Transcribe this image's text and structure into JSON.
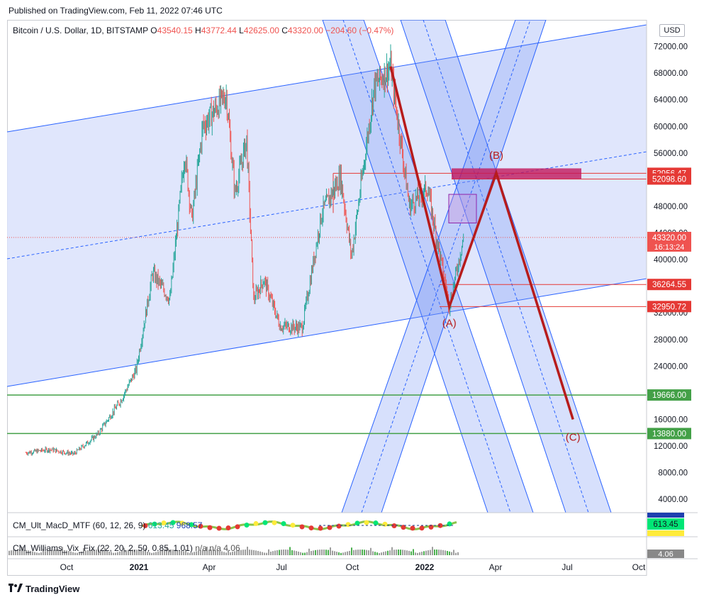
{
  "header": {
    "published": "Published on TradingView.com, Feb 11, 2022 07:46 UTC"
  },
  "legend": {
    "symbol": "Bitcoin / U.S. Dollar, 1D, BITSTAMP",
    "open_key": "O",
    "open": "43540.15",
    "high_key": "H",
    "high": "43772.44",
    "low_key": "L",
    "low": "42625.00",
    "close_key": "C",
    "close": "43320.00",
    "change": "−204.60 (−0.47%)"
  },
  "currency_button": "USD",
  "indicators": {
    "macd": {
      "name": "CM_Ult_MacD_MTF (60, 12, 26, 9)",
      "v1": "613.45",
      "v2": "968.57",
      "axis_top": "1000",
      "axis_mid": "613.45",
      "axis_low": "355.12"
    },
    "vix": {
      "name": "CM_Williams_Vix_Fix (22, 20, 2, 50, 0.85, 1.01)",
      "v1": "n/a",
      "v2": "n/a",
      "v3": "4.06",
      "axis": "4.06"
    }
  },
  "footer": {
    "brand": "TradingView",
    "logo_icon": "tradingview-logo-icon"
  },
  "colors": {
    "channel_fill": "#dbe2fb",
    "channel_line": "#2962ff",
    "wave_line": "#b71c1c",
    "support_green": "#43a047",
    "resistance_box": "#c2185b",
    "candle_up": "#26a69a",
    "candle_down": "#ef5350",
    "price_tag_red": "#e53935"
  },
  "chart_data": {
    "type": "candlestick",
    "title": "Bitcoin / U.S. Dollar, 1D, BITSTAMP",
    "x_axis": {
      "ticks": [
        "Oct",
        "2021",
        "Apr",
        "Jul",
        "Oct",
        "2022",
        "Apr",
        "Jul",
        "Oct"
      ]
    },
    "y_axis": {
      "min": 2000,
      "max": 76000,
      "currency": "USD",
      "ticks": [
        4000,
        8000,
        12000,
        16000,
        20000,
        24000,
        28000,
        32000,
        36000,
        40000,
        44000,
        48000,
        52000,
        56000,
        60000,
        64000,
        68000,
        72000,
        76000
      ]
    },
    "price_path": [
      {
        "date": "2020-08-01",
        "price": 11000
      },
      {
        "date": "2020-09-01",
        "price": 11500
      },
      {
        "date": "2020-10-01",
        "price": 10800
      },
      {
        "date": "2020-11-01",
        "price": 13800
      },
      {
        "date": "2020-12-01",
        "price": 19000
      },
      {
        "date": "2020-12-20",
        "price": 23500
      },
      {
        "date": "2021-01-10",
        "price": 38000
      },
      {
        "date": "2021-02-01",
        "price": 34000
      },
      {
        "date": "2021-02-20",
        "price": 56000
      },
      {
        "date": "2021-03-01",
        "price": 46000
      },
      {
        "date": "2021-03-15",
        "price": 60000
      },
      {
        "date": "2021-04-14",
        "price": 64800
      },
      {
        "date": "2021-04-25",
        "price": 50000
      },
      {
        "date": "2021-05-10",
        "price": 58000
      },
      {
        "date": "2021-05-19",
        "price": 34000
      },
      {
        "date": "2021-06-01",
        "price": 37000
      },
      {
        "date": "2021-06-22",
        "price": 30000
      },
      {
        "date": "2021-07-20",
        "price": 29800
      },
      {
        "date": "2021-08-14",
        "price": 47000
      },
      {
        "date": "2021-09-07",
        "price": 52500
      },
      {
        "date": "2021-09-21",
        "price": 40500
      },
      {
        "date": "2021-10-20",
        "price": 66000
      },
      {
        "date": "2021-11-10",
        "price": 69000
      },
      {
        "date": "2021-12-04",
        "price": 48000
      },
      {
        "date": "2021-12-27",
        "price": 50800
      },
      {
        "date": "2022-01-24",
        "price": 33000
      },
      {
        "date": "2022-02-11",
        "price": 43320
      }
    ],
    "horizontal_levels": [
      {
        "price": 52956.47,
        "label": "52956.47",
        "color": "#e53935"
      },
      {
        "price": 52098.6,
        "label": "52098.60",
        "color": "#e53935"
      },
      {
        "price": 43320.0,
        "label": "43320.00",
        "color": "#ef5350",
        "note": "16:13:24"
      },
      {
        "price": 36264.55,
        "label": "36264.55",
        "color": "#e53935"
      },
      {
        "price": 32950.72,
        "label": "32950.72",
        "color": "#e53935"
      },
      {
        "price": 19666.0,
        "label": "19666.00",
        "color": "#43a047"
      },
      {
        "price": 13880.0,
        "label": "13880.00",
        "color": "#43a047"
      }
    ],
    "wave_labels": [
      {
        "label": "(A)",
        "date": "2022-01-24",
        "price": 32950
      },
      {
        "label": "(B)",
        "date": "2022-03-25",
        "price": 53000
      },
      {
        "label": "(C)",
        "date": "2022-07-01",
        "price": 16000
      }
    ],
    "wave_path": [
      {
        "date": "2021-11-10",
        "price": 69000
      },
      {
        "date": "2022-01-24",
        "price": 32950
      },
      {
        "date": "2022-03-25",
        "price": 53000
      },
      {
        "date": "2022-07-01",
        "price": 16000
      }
    ]
  }
}
